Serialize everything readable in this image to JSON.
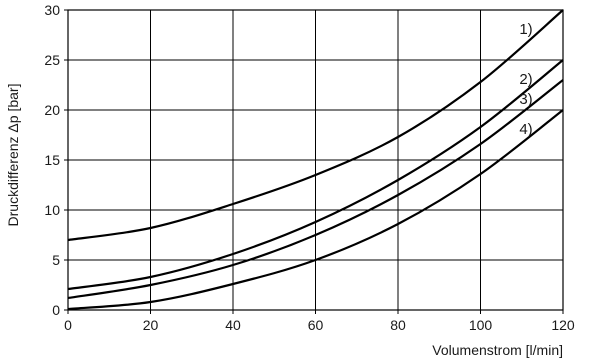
{
  "chart_data": {
    "type": "line",
    "xlabel": "Volumenstrom [l/min]",
    "ylabel": "Druckdifferenz Δp [bar]",
    "xlim": [
      0,
      120
    ],
    "ylim": [
      0,
      30
    ],
    "x_ticks": [
      0,
      20,
      40,
      60,
      80,
      100,
      120
    ],
    "y_ticks": [
      0,
      5,
      10,
      15,
      20,
      25,
      30
    ],
    "grid": true,
    "series": [
      {
        "name": "1)",
        "x": [
          0,
          20,
          40,
          60,
          80,
          100,
          120
        ],
        "y": [
          7.0,
          8.2,
          10.6,
          13.5,
          17.3,
          22.8,
          30.0
        ]
      },
      {
        "name": "2)",
        "x": [
          0,
          20,
          40,
          60,
          80,
          100,
          120
        ],
        "y": [
          2.1,
          3.3,
          5.6,
          8.8,
          13.0,
          18.3,
          25.0
        ]
      },
      {
        "name": "3)",
        "x": [
          0,
          20,
          40,
          60,
          80,
          100,
          120
        ],
        "y": [
          1.2,
          2.5,
          4.5,
          7.5,
          11.5,
          16.6,
          23.0
        ]
      },
      {
        "name": "4)",
        "x": [
          0,
          20,
          40,
          60,
          80,
          100,
          120
        ],
        "y": [
          0.1,
          0.8,
          2.6,
          5.0,
          8.6,
          13.6,
          20.0
        ]
      }
    ]
  }
}
